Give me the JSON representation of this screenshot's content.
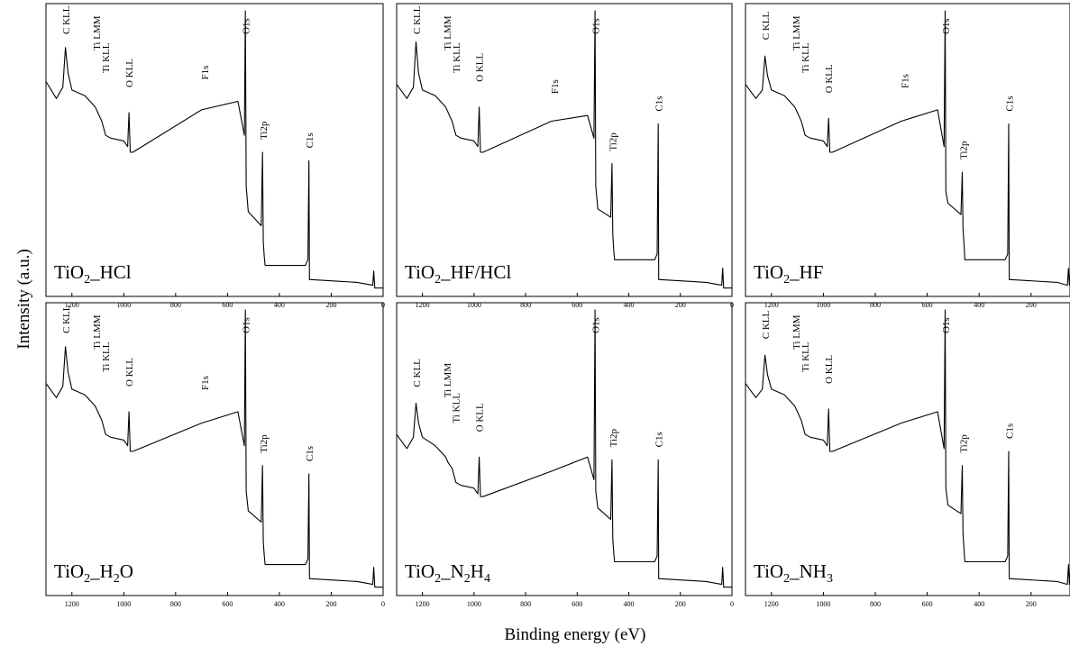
{
  "figure": {
    "xlabel": "Binding energy (eV)",
    "ylabel": "Intensity (a.u.)"
  },
  "chart_data": [
    {
      "type": "line",
      "label": "TiO",
      "subscript": "2",
      "suffix": "_HCl",
      "xlim": [
        1300,
        0
      ],
      "xticks": [
        1200,
        1000,
        800,
        600,
        400,
        200,
        0
      ],
      "xtick_labels": [
        "1200",
        "1000",
        "800",
        "600",
        "400",
        "200",
        "0"
      ],
      "peaks": [
        {
          "name": "C KLL",
          "x": 1223
        },
        {
          "name": "Ti LMM",
          "x": 1105
        },
        {
          "name": "Ti KLL",
          "x": 1070
        },
        {
          "name": "O KLL",
          "x": 980
        },
        {
          "name": "F1s",
          "x": 688
        },
        {
          "name": "O1s",
          "x": 530
        },
        {
          "name": "Ti2p",
          "x": 462
        },
        {
          "name": "C1s",
          "x": 285
        }
      ],
      "x": [
        1300,
        1260,
        1235,
        1225,
        1215,
        1200,
        1150,
        1110,
        1100,
        1085,
        1070,
        1050,
        1000,
        985,
        980,
        975,
        965,
        700,
        560,
        535,
        531,
        528,
        520,
        470,
        465,
        462,
        458,
        455,
        300,
        290,
        286,
        284,
        280,
        100,
        40,
        36,
        32,
        20,
        0
      ],
      "y": [
        0.75,
        0.69,
        0.73,
        0.87,
        0.78,
        0.72,
        0.7,
        0.66,
        0.64,
        0.61,
        0.56,
        0.55,
        0.54,
        0.52,
        0.64,
        0.5,
        0.5,
        0.65,
        0.68,
        0.56,
        1.0,
        0.38,
        0.29,
        0.24,
        0.5,
        0.18,
        0.13,
        0.1,
        0.1,
        0.12,
        0.47,
        0.05,
        0.05,
        0.04,
        0.03,
        0.08,
        0.02,
        0.02,
        0.02
      ]
    },
    {
      "type": "line",
      "label": "TiO",
      "subscript": "2",
      "suffix": "_HF/HCl",
      "xlim": [
        1300,
        0
      ],
      "xticks": [
        1200,
        1000,
        800,
        600,
        400,
        200,
        0
      ],
      "xtick_labels": [
        "1200",
        "1000",
        "800",
        "600",
        "400",
        "200",
        "0"
      ],
      "peaks": [
        {
          "name": "C KLL",
          "x": 1223
        },
        {
          "name": "Ti LMM",
          "x": 1105
        },
        {
          "name": "Ti KLL",
          "x": 1070
        },
        {
          "name": "O KLL",
          "x": 980
        },
        {
          "name": "F1s",
          "x": 688
        },
        {
          "name": "O1s",
          "x": 530
        },
        {
          "name": "Ti2p",
          "x": 462
        },
        {
          "name": "C1s",
          "x": 285
        }
      ],
      "x": [
        1300,
        1260,
        1235,
        1225,
        1215,
        1200,
        1150,
        1110,
        1100,
        1085,
        1070,
        1050,
        1000,
        985,
        980,
        975,
        965,
        700,
        560,
        535,
        531,
        528,
        520,
        470,
        465,
        462,
        458,
        455,
        300,
        290,
        286,
        284,
        280,
        100,
        40,
        36,
        32,
        20,
        0
      ],
      "y": [
        0.74,
        0.69,
        0.73,
        0.89,
        0.78,
        0.72,
        0.7,
        0.66,
        0.64,
        0.61,
        0.56,
        0.55,
        0.54,
        0.52,
        0.66,
        0.5,
        0.5,
        0.61,
        0.63,
        0.55,
        1.0,
        0.38,
        0.3,
        0.27,
        0.46,
        0.21,
        0.15,
        0.12,
        0.12,
        0.14,
        0.6,
        0.05,
        0.05,
        0.04,
        0.03,
        0.09,
        0.02,
        0.02,
        0.02
      ]
    },
    {
      "type": "line",
      "label": "TiO",
      "subscript": "2",
      "suffix": "_HF",
      "xlim": [
        1300,
        50
      ],
      "xticks": [
        1200,
        1000,
        800,
        600,
        400,
        200
      ],
      "xtick_labels": [
        "1200",
        "1000",
        "800",
        "600",
        "400",
        "200"
      ],
      "peaks": [
        {
          "name": "C KLL",
          "x": 1223
        },
        {
          "name": "Ti LMM",
          "x": 1105
        },
        {
          "name": "Ti KLL",
          "x": 1070
        },
        {
          "name": "O KLL",
          "x": 980
        },
        {
          "name": "F1s",
          "x": 688
        },
        {
          "name": "O1s",
          "x": 530
        },
        {
          "name": "Ti2p",
          "x": 462
        },
        {
          "name": "C1s",
          "x": 285
        }
      ],
      "x": [
        1300,
        1260,
        1235,
        1225,
        1215,
        1200,
        1150,
        1110,
        1100,
        1085,
        1070,
        1050,
        1000,
        985,
        980,
        975,
        965,
        700,
        560,
        535,
        531,
        528,
        520,
        470,
        465,
        462,
        458,
        455,
        300,
        290,
        286,
        284,
        280,
        100,
        60,
        56,
        52,
        50
      ],
      "y": [
        0.74,
        0.69,
        0.72,
        0.84,
        0.77,
        0.72,
        0.7,
        0.66,
        0.64,
        0.61,
        0.56,
        0.55,
        0.54,
        0.52,
        0.62,
        0.5,
        0.5,
        0.61,
        0.65,
        0.52,
        1.0,
        0.36,
        0.32,
        0.28,
        0.43,
        0.23,
        0.17,
        0.12,
        0.12,
        0.14,
        0.6,
        0.05,
        0.05,
        0.04,
        0.03,
        0.09,
        0.03,
        0.03
      ]
    },
    {
      "type": "line",
      "label": "TiO",
      "subscript": "2",
      "suffix": "_H",
      "subscript2": "2",
      "suffix2": "O",
      "xlim": [
        1300,
        0
      ],
      "xticks": [
        1200,
        1000,
        800,
        600,
        400,
        200,
        0
      ],
      "xtick_labels": [
        "1200",
        "1000",
        "800",
        "600",
        "400",
        "200",
        "0"
      ],
      "peaks": [
        {
          "name": "C KLL",
          "x": 1223
        },
        {
          "name": "Ti LMM",
          "x": 1105
        },
        {
          "name": "Ti KLL",
          "x": 1070
        },
        {
          "name": "O KLL",
          "x": 980
        },
        {
          "name": "F1s",
          "x": 688
        },
        {
          "name": "O1s",
          "x": 530
        },
        {
          "name": "Ti2p",
          "x": 462
        },
        {
          "name": "C1s",
          "x": 285
        }
      ],
      "x": [
        1300,
        1260,
        1235,
        1225,
        1215,
        1200,
        1150,
        1110,
        1100,
        1085,
        1070,
        1050,
        1000,
        985,
        980,
        975,
        965,
        700,
        560,
        535,
        531,
        528,
        520,
        470,
        465,
        462,
        458,
        455,
        300,
        290,
        286,
        284,
        280,
        100,
        40,
        36,
        32,
        20,
        0
      ],
      "y": [
        0.74,
        0.69,
        0.73,
        0.87,
        0.78,
        0.72,
        0.7,
        0.66,
        0.64,
        0.61,
        0.56,
        0.55,
        0.54,
        0.52,
        0.64,
        0.5,
        0.5,
        0.6,
        0.64,
        0.52,
        1.0,
        0.36,
        0.29,
        0.25,
        0.45,
        0.18,
        0.13,
        0.1,
        0.1,
        0.12,
        0.42,
        0.05,
        0.05,
        0.04,
        0.03,
        0.09,
        0.02,
        0.02,
        0.02
      ]
    },
    {
      "type": "line",
      "label": "TiO",
      "subscript": "2",
      "suffix": "_N",
      "subscript2": "2",
      "suffix2": "H",
      "subscript3": "4",
      "xlim": [
        1300,
        0
      ],
      "xticks": [
        1200,
        1000,
        800,
        600,
        400,
        200,
        0
      ],
      "xtick_labels": [
        "1200",
        "1000",
        "800",
        "600",
        "400",
        "200",
        "0"
      ],
      "peaks": [
        {
          "name": "C KLL",
          "x": 1223
        },
        {
          "name": "Ti LMM",
          "x": 1105
        },
        {
          "name": "Ti KLL",
          "x": 1070
        },
        {
          "name": "O KLL",
          "x": 980
        },
        {
          "name": "O1s",
          "x": 530
        },
        {
          "name": "Ti2p",
          "x": 462
        },
        {
          "name": "C1s",
          "x": 285
        }
      ],
      "x": [
        1300,
        1260,
        1235,
        1225,
        1215,
        1200,
        1150,
        1110,
        1100,
        1085,
        1070,
        1050,
        1000,
        985,
        980,
        975,
        965,
        700,
        560,
        535,
        531,
        528,
        520,
        470,
        465,
        462,
        458,
        455,
        300,
        290,
        286,
        284,
        280,
        100,
        40,
        36,
        32,
        20,
        0
      ],
      "y": [
        0.56,
        0.51,
        0.55,
        0.67,
        0.6,
        0.55,
        0.52,
        0.48,
        0.46,
        0.44,
        0.39,
        0.38,
        0.37,
        0.35,
        0.48,
        0.34,
        0.34,
        0.43,
        0.48,
        0.4,
        1.0,
        0.36,
        0.3,
        0.26,
        0.47,
        0.19,
        0.14,
        0.11,
        0.11,
        0.13,
        0.47,
        0.05,
        0.05,
        0.04,
        0.03,
        0.09,
        0.02,
        0.02,
        0.02
      ]
    },
    {
      "type": "line",
      "label": "TiO",
      "subscript": "2",
      "suffix": "_NH",
      "subscript2": "3",
      "xlim": [
        1300,
        50
      ],
      "xticks": [
        1200,
        1000,
        800,
        600,
        400,
        200
      ],
      "xtick_labels": [
        "1200",
        "1000",
        "800",
        "600",
        "400",
        "200"
      ],
      "peaks": [
        {
          "name": "C KLL",
          "x": 1223
        },
        {
          "name": "Ti LMM",
          "x": 1105
        },
        {
          "name": "Ti KLL",
          "x": 1070
        },
        {
          "name": "O KLL",
          "x": 980
        },
        {
          "name": "O1s",
          "x": 530
        },
        {
          "name": "Ti2p",
          "x": 462
        },
        {
          "name": "C1s",
          "x": 285
        }
      ],
      "x": [
        1300,
        1260,
        1235,
        1225,
        1215,
        1200,
        1150,
        1110,
        1100,
        1085,
        1070,
        1050,
        1000,
        985,
        980,
        975,
        965,
        700,
        560,
        535,
        531,
        528,
        520,
        470,
        465,
        462,
        458,
        455,
        300,
        290,
        286,
        284,
        280,
        100,
        60,
        56,
        52,
        50
      ],
      "y": [
        0.74,
        0.69,
        0.72,
        0.84,
        0.77,
        0.72,
        0.7,
        0.66,
        0.64,
        0.61,
        0.56,
        0.55,
        0.54,
        0.52,
        0.65,
        0.5,
        0.5,
        0.6,
        0.64,
        0.51,
        1.0,
        0.37,
        0.31,
        0.28,
        0.45,
        0.21,
        0.15,
        0.11,
        0.11,
        0.13,
        0.5,
        0.05,
        0.05,
        0.04,
        0.03,
        0.1,
        0.03,
        0.03
      ]
    }
  ]
}
